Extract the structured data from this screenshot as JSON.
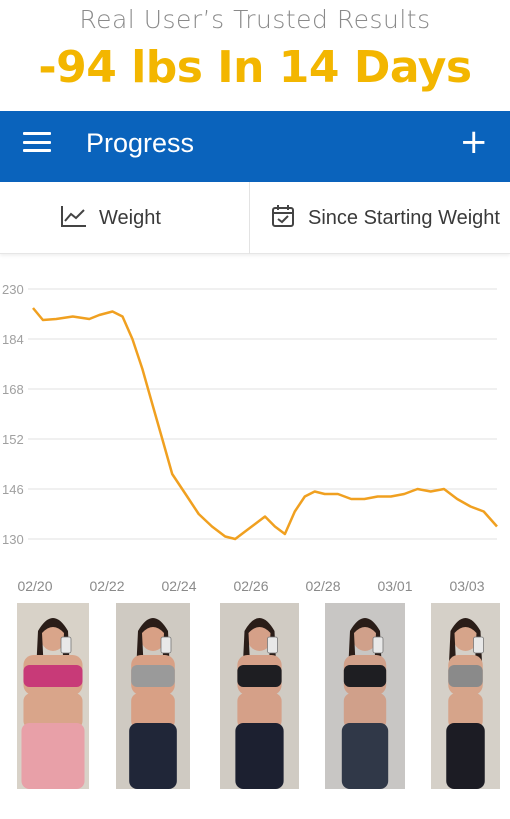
{
  "promo": {
    "subtitle": "Real User’s Trusted Results",
    "headline": "-94 lbs In 14 Days",
    "headline_color": "#f3b600"
  },
  "appbar": {
    "title": "Progress",
    "menu_icon": "hamburger-menu-icon",
    "add_icon": "plus-icon",
    "background": "#0a63bc"
  },
  "toolbar": {
    "metric_label": "Weight",
    "metric_icon": "line-chart-icon",
    "range_label": "Since Starting Weight",
    "range_icon": "calendar-check-icon"
  },
  "chart_data": {
    "type": "line",
    "title": "",
    "xlabel": "",
    "ylabel": "",
    "y_tick_labels": [
      "230",
      "184",
      "168",
      "152",
      "146",
      "130"
    ],
    "x_tick_labels": [
      "02/20",
      "02/22",
      "02/24",
      "02/26",
      "02/28",
      "03/01",
      "03/03"
    ],
    "line_color": "#f0a020",
    "grid": true,
    "series": [
      {
        "name": "",
        "x_days": [
          0,
          0.3,
          0.7,
          1.2,
          1.7,
          2.0,
          2.4,
          2.7,
          3.0,
          3.3,
          3.6,
          3.9,
          4.2,
          4.6,
          5.0,
          5.4,
          5.8,
          6.1,
          6.4,
          6.7,
          7.0,
          7.3,
          7.6,
          7.9,
          8.2,
          8.5,
          8.8,
          9.2,
          9.6,
          10.0,
          10.4,
          10.8,
          11.2,
          11.6,
          12.0,
          12.4,
          12.8,
          13.2,
          13.6,
          14.0
        ],
        "y_index": [
          0.38,
          0.62,
          0.6,
          0.55,
          0.6,
          0.52,
          0.45,
          0.55,
          1.0,
          1.6,
          2.3,
          3.0,
          3.7,
          4.1,
          4.5,
          4.75,
          4.95,
          5.0,
          4.85,
          4.7,
          4.55,
          4.75,
          4.9,
          4.45,
          4.15,
          4.05,
          4.1,
          4.1,
          4.2,
          4.2,
          4.15,
          4.15,
          4.1,
          4.0,
          4.05,
          4.0,
          4.2,
          4.35,
          4.45,
          4.75
        ]
      }
    ]
  },
  "photos": [
    {
      "name": "progress-photo-day-1",
      "skin": "#d9a58a",
      "top": "#c83a78",
      "bottom": "#e8a0a8",
      "bg": "#d8d2c8"
    },
    {
      "name": "progress-photo-day-4",
      "skin": "#d8a085",
      "top": "#9a9a9a",
      "bottom": "#202638",
      "bg": "#cfcac2"
    },
    {
      "name": "progress-photo-day-7",
      "skin": "#d5a088",
      "top": "#1e1e22",
      "bottom": "#1c2030",
      "bg": "#d0cbc3"
    },
    {
      "name": "progress-photo-day-10",
      "skin": "#d0a08a",
      "top": "#1e1e22",
      "bottom": "#303848",
      "bg": "#c8c6c4"
    },
    {
      "name": "progress-photo-day-14",
      "skin": "#d6a48a",
      "top": "#8a8a8a",
      "bottom": "#1c1c24",
      "bg": "#d5d0c8"
    }
  ]
}
